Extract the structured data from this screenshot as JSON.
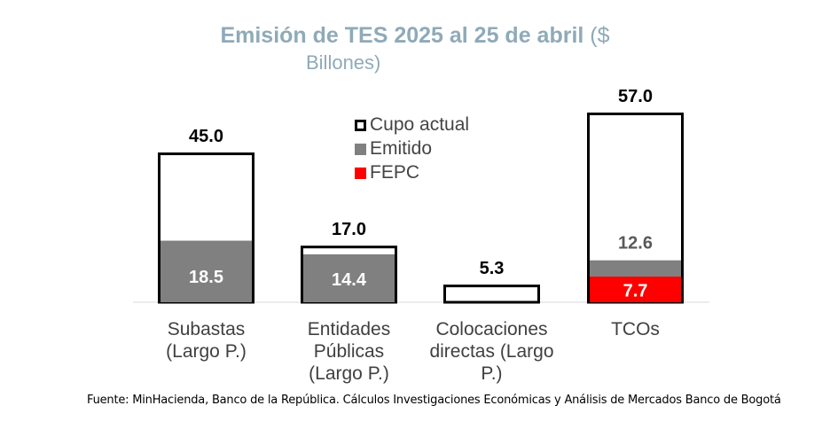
{
  "title": {
    "bold": "Emisión de TES 2025 al 25 de abril",
    "rest": " ($",
    "line2": "Billones)"
  },
  "legend": [
    {
      "label": "Cupo actual",
      "color": "#000000"
    },
    {
      "label": "Emitido",
      "color": "#808080"
    },
    {
      "label": "FEPC",
      "color": "#FF0000"
    }
  ],
  "source": "Fuente: MinHacienda, Banco de la República. Cálculos Investigaciones Económicas y Análisis de Mercados Banco de Bogotá",
  "chart_data": {
    "type": "bar",
    "categories": [
      [
        "Subastas",
        "(Largo P.)"
      ],
      [
        "Entidades",
        "Públicas",
        "(Largo P.)"
      ],
      [
        "Colocaciones",
        "directas (Largo",
        "P.)"
      ],
      [
        "TCOs"
      ]
    ],
    "series": [
      {
        "name": "Cupo actual",
        "values": [
          45.0,
          17.0,
          5.3,
          57.0
        ],
        "color": "#000000"
      },
      {
        "name": "Emitido",
        "values": [
          18.5,
          14.4,
          null,
          12.6
        ],
        "color": "#808080"
      },
      {
        "name": "FEPC",
        "values": [
          null,
          null,
          null,
          7.7
        ],
        "color": "#FF0000"
      }
    ],
    "ylim": [
      0,
      57
    ]
  }
}
